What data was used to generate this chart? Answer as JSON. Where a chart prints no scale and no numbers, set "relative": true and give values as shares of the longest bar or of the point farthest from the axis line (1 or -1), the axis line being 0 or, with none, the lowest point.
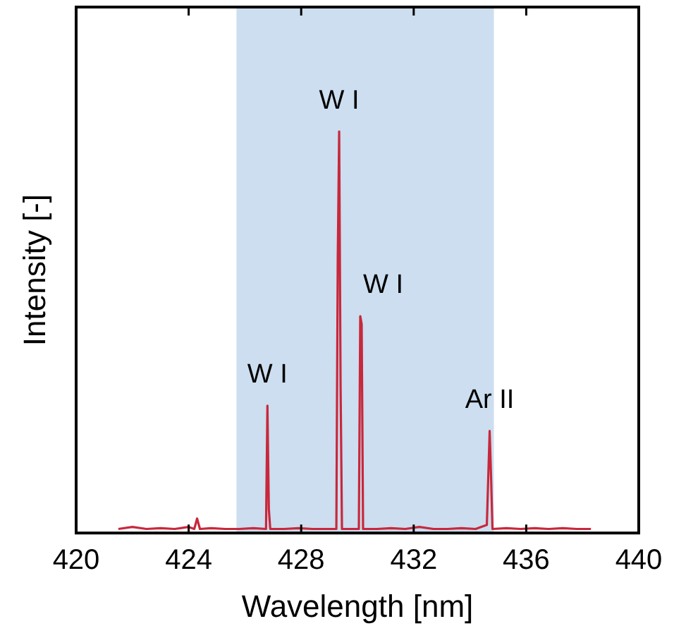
{
  "chart_data": {
    "type": "line",
    "xlabel": "Wavelength [nm]",
    "ylabel": "Intensity [-]",
    "relative": true,
    "color": "#c8283c",
    "marker": "none",
    "legend": false,
    "grid": false,
    "xlim": [
      420,
      440
    ],
    "xticks": [
      420,
      424,
      428,
      432,
      436,
      440
    ],
    "x": [
      421.5,
      422,
      422.5,
      423,
      423.5,
      424,
      424.2,
      424.3,
      424.4,
      424.8,
      425.3,
      425.8,
      426.3,
      426.75,
      426.8,
      426.85,
      426.9,
      427.4,
      427.9,
      428.4,
      428.9,
      429.25,
      429.3,
      429.35,
      429.4,
      429.45,
      429.8,
      430.05,
      430.1,
      430.15,
      430.2,
      430.7,
      431.2,
      431.7,
      432.2,
      432.7,
      433.2,
      433.7,
      434.2,
      434.6,
      434.7,
      434.75,
      434.8,
      435.3,
      435.8,
      436.3,
      436.8,
      437.3,
      437.8,
      438.3
    ],
    "values": [
      0.01,
      0.015,
      0.01,
      0.012,
      0.01,
      0.015,
      0.01,
      0.036,
      0.01,
      0.012,
      0.01,
      0.01,
      0.012,
      0.01,
      0.317,
      0.06,
      0.01,
      0.01,
      0.012,
      0.01,
      0.01,
      0.01,
      0.68,
      1,
      0.37,
      0.01,
      0.01,
      0.01,
      0.54,
      0.52,
      0.01,
      0.01,
      0.012,
      0.01,
      0.015,
      0.01,
      0.01,
      0.012,
      0.01,
      0.02,
      0.254,
      0.14,
      0.01,
      0.012,
      0.01,
      0.012,
      0.01,
      0.012,
      0.01,
      0.01
    ],
    "bands": [
      {
        "axis": "x",
        "from": 425.7,
        "to": 434.85,
        "color": "#ccdeef"
      }
    ],
    "annotations": [
      {
        "text": "W I",
        "x": 426.8,
        "y": 0.317
      },
      {
        "text": "W I",
        "x": 429.35,
        "y": 1
      },
      {
        "text": "W I",
        "x": 430.1,
        "y": 0.54
      },
      {
        "text": "Ar II",
        "x": 434.7,
        "y": 0.254
      }
    ]
  }
}
